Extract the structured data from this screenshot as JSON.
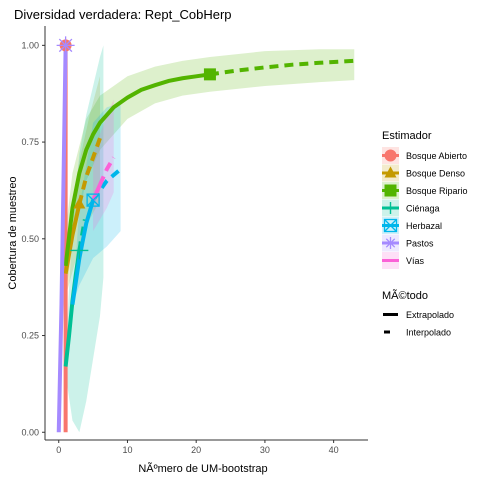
{
  "chart_data": {
    "type": "line",
    "title": "Diversidad verdadera: Rept_CobHerp",
    "xlabel": "NÃºmero de UM-bootstrap",
    "ylabel": "Cobertura de muestreo",
    "xlim": [
      -2,
      45
    ],
    "ylim": [
      -0.02,
      1.05
    ],
    "x_ticks": [
      0,
      10,
      20,
      30,
      40
    ],
    "y_ticks": [
      0.0,
      0.25,
      0.5,
      0.75,
      1.0
    ],
    "x_tick_labels": [
      "0",
      "10",
      "20",
      "30",
      "40"
    ],
    "y_tick_labels": [
      "0.00",
      "0.25",
      "0.50",
      "0.75",
      "1.00"
    ],
    "grid": false,
    "legend_position": "right",
    "legend_estimator_title": "Estimador",
    "legend_method_title": "MÃ©todo",
    "methods": [
      {
        "key": "extrapolado",
        "label": "Extrapolado",
        "dash": "solid"
      },
      {
        "key": "interpolado",
        "label": "Interpolado",
        "dash": "dashed"
      }
    ],
    "series": [
      {
        "name": "Bosque Abierto",
        "color": "#F8766D",
        "shape": "circle",
        "observed": {
          "x": 1,
          "y": 1.0
        },
        "solid": [
          [
            1,
            0.0
          ],
          [
            1,
            1.0
          ]
        ],
        "dashed": [],
        "ribbon": []
      },
      {
        "name": "Bosque Denso",
        "color": "#C49A00",
        "shape": "triangle",
        "observed": {
          "x": 3,
          "y": 0.59
        },
        "solid": [
          [
            1,
            0.41
          ],
          [
            1.5,
            0.46
          ],
          [
            2,
            0.51
          ],
          [
            2.5,
            0.55
          ],
          [
            3,
            0.59
          ]
        ],
        "dashed": [
          [
            3,
            0.59
          ],
          [
            4,
            0.66
          ],
          [
            5,
            0.71
          ],
          [
            6,
            0.76
          ]
        ],
        "ribbon": [
          [
            1,
            0.35,
            0.48
          ],
          [
            3,
            0.48,
            0.7
          ],
          [
            4.5,
            0.55,
            0.82
          ],
          [
            6,
            0.6,
            0.92
          ]
        ]
      },
      {
        "name": "Bosque Ripario",
        "color": "#53B400",
        "shape": "square",
        "observed": {
          "x": 22,
          "y": 0.925
        },
        "solid": [
          [
            1,
            0.43
          ],
          [
            2,
            0.58
          ],
          [
            3,
            0.67
          ],
          [
            4,
            0.73
          ],
          [
            5,
            0.77
          ],
          [
            6,
            0.8
          ],
          [
            8,
            0.84
          ],
          [
            10,
            0.865
          ],
          [
            12,
            0.885
          ],
          [
            14,
            0.897
          ],
          [
            16,
            0.908
          ],
          [
            18,
            0.915
          ],
          [
            20,
            0.92
          ],
          [
            22,
            0.925
          ]
        ],
        "dashed": [
          [
            22,
            0.925
          ],
          [
            26,
            0.935
          ],
          [
            30,
            0.943
          ],
          [
            34,
            0.95
          ],
          [
            38,
            0.955
          ],
          [
            43,
            0.96
          ]
        ],
        "ribbon": [
          [
            1,
            0.35,
            0.52
          ],
          [
            2,
            0.49,
            0.67
          ],
          [
            4,
            0.65,
            0.81
          ],
          [
            6,
            0.73,
            0.87
          ],
          [
            10,
            0.81,
            0.92
          ],
          [
            14,
            0.85,
            0.945
          ],
          [
            18,
            0.87,
            0.96
          ],
          [
            22,
            0.88,
            0.97
          ],
          [
            30,
            0.895,
            0.985
          ],
          [
            38,
            0.905,
            0.99
          ],
          [
            43,
            0.91,
            0.99
          ]
        ]
      },
      {
        "name": "Ciénaga",
        "color": "#00C094",
        "shape": "plus",
        "observed": {
          "x": 3,
          "y": 0.47
        },
        "solid": [
          [
            1,
            0.17
          ],
          [
            1.5,
            0.25
          ],
          [
            2,
            0.34
          ],
          [
            2.5,
            0.41
          ],
          [
            3,
            0.47
          ]
        ],
        "dashed": [
          [
            3,
            0.47
          ],
          [
            3.8,
            0.55
          ]
        ],
        "ribbon": [
          [
            1,
            0.15,
            0.21
          ],
          [
            2,
            0.03,
            0.53
          ],
          [
            3,
            0.0,
            0.72
          ],
          [
            4,
            0.08,
            0.82
          ],
          [
            6,
            0.3,
            0.97
          ],
          [
            6.5,
            0.4,
            1.0
          ]
        ]
      },
      {
        "name": "Herbazal",
        "color": "#00B6EB",
        "shape": "square-x",
        "observed": {
          "x": 5,
          "y": 0.6
        },
        "solid": [
          [
            2,
            0.33
          ],
          [
            3,
            0.45
          ],
          [
            4,
            0.54
          ],
          [
            5,
            0.6
          ]
        ],
        "dashed": [
          [
            5,
            0.6
          ],
          [
            7,
            0.65
          ],
          [
            9,
            0.68
          ]
        ],
        "ribbon": [
          [
            2,
            0.33,
            0.33
          ],
          [
            3,
            0.38,
            0.58
          ],
          [
            5,
            0.45,
            0.8
          ],
          [
            7,
            0.48,
            0.84
          ],
          [
            9,
            0.52,
            0.85
          ]
        ]
      },
      {
        "name": "Pastos",
        "color": "#A58AFF",
        "shape": "asterisk",
        "observed": {
          "x": 1,
          "y": 1.0
        },
        "solid": [
          [
            0,
            0.0
          ],
          [
            0.4,
            0.33
          ],
          [
            0.7,
            0.66
          ],
          [
            1,
            1.0
          ]
        ],
        "dashed": [],
        "ribbon": []
      },
      {
        "name": "Vías",
        "color": "#FB61D7",
        "shape": "line",
        "observed": null,
        "solid": [
          [
            5,
            0.6
          ],
          [
            6,
            0.64
          ]
        ],
        "dashed": [
          [
            6,
            0.64
          ],
          [
            7,
            0.68
          ],
          [
            8,
            0.71
          ]
        ],
        "ribbon": [
          [
            5,
            0.52,
            0.72
          ],
          [
            7,
            0.58,
            0.82
          ],
          [
            8,
            0.62,
            0.86
          ]
        ]
      }
    ]
  }
}
